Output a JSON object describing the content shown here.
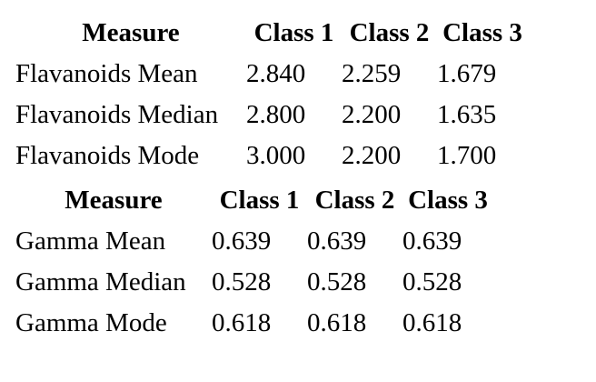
{
  "tables": [
    {
      "headers": [
        "Measure",
        "Class 1",
        "Class 2",
        "Class 3"
      ],
      "rows": [
        [
          "Flavanoids Mean",
          "2.840",
          "2.259",
          "1.679"
        ],
        [
          "Flavanoids Median",
          "2.800",
          "2.200",
          "1.635"
        ],
        [
          "Flavanoids Mode",
          "3.000",
          "2.200",
          "1.700"
        ]
      ]
    },
    {
      "headers": [
        "Measure",
        "Class 1",
        "Class 2",
        "Class 3"
      ],
      "rows": [
        [
          "Gamma Mean",
          "0.639",
          "0.639",
          "0.639"
        ],
        [
          "Gamma Median",
          "0.528",
          "0.528",
          "0.528"
        ],
        [
          "Gamma Mode",
          "0.618",
          "0.618",
          "0.618"
        ]
      ]
    }
  ]
}
